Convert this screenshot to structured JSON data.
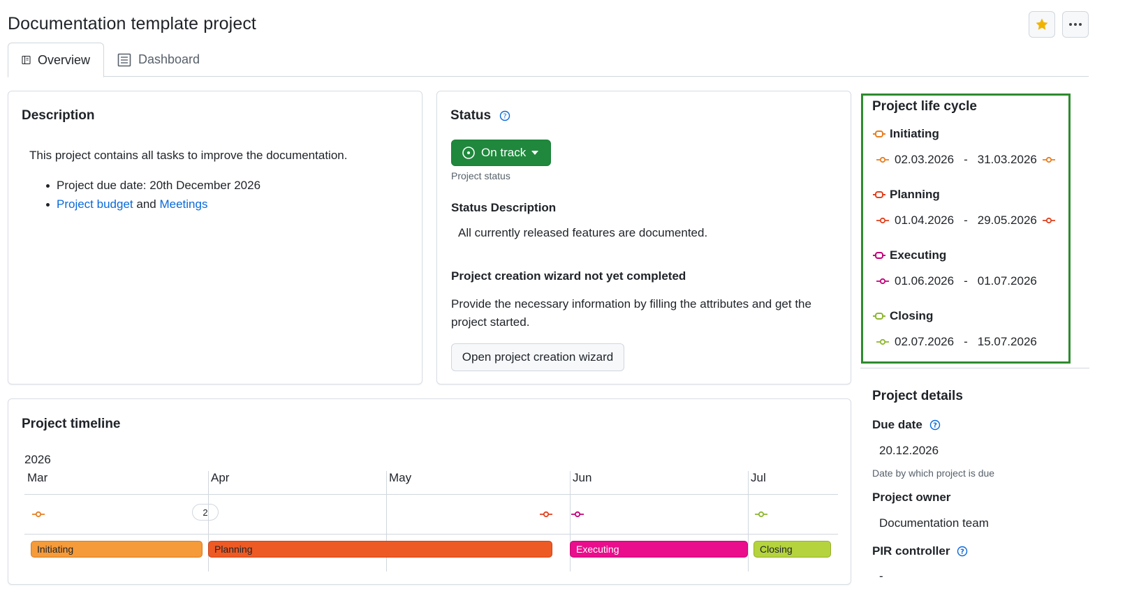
{
  "page": {
    "title": "Documentation template project"
  },
  "tabs": [
    {
      "label": "Overview",
      "icon": "book-icon",
      "active": true
    },
    {
      "label": "Dashboard",
      "icon": "list-icon",
      "active": false
    }
  ],
  "description": {
    "title": "Description",
    "intro": "This project contains all tasks to improve the documentation.",
    "bullet1": "Project due date: 20th December 2026",
    "budget_link": "Project budget",
    "and": "and",
    "meetings_link": "Meetings"
  },
  "status": {
    "title": "Status",
    "value": "On track",
    "value_hint": "Project status",
    "desc_head": "Status Description",
    "desc_text": "All currently released features are documented.",
    "wizard_head": "Project creation wizard not yet completed",
    "wizard_text_1": "Provide the necessary information by filling the attributes and get the",
    "wizard_text_2": "project started.",
    "wizard_button": "Open project creation wizard",
    "color": "#1f883d"
  },
  "lifecycle": {
    "title": "Project life cycle",
    "phases": [
      {
        "name": "Initiating",
        "start": "02.03.2026",
        "end": "31.03.2026",
        "color": "#e67e22"
      },
      {
        "name": "Planning",
        "start": "01.04.2026",
        "end": "29.05.2026",
        "color": "#e0401d"
      },
      {
        "name": "Executing",
        "start": "01.06.2026",
        "end": "01.07.2026",
        "color": "#c2007a"
      },
      {
        "name": "Closing",
        "start": "02.07.2026",
        "end": "15.07.2026",
        "color": "#8db62f"
      }
    ],
    "separator": "-"
  },
  "details": {
    "title": "Project details",
    "due_label": "Due date",
    "due_value": "20.12.2026",
    "due_hint": "Date by which project is due",
    "owner_label": "Project owner",
    "owner_value": "Documentation team",
    "pir_label": "PIR controller",
    "pir_value": "-"
  },
  "timeline": {
    "title": "Project timeline",
    "year": "2026",
    "months": [
      "Mar",
      "Apr",
      "May",
      "Jun",
      "Jul"
    ],
    "cluster_count": "2",
    "bars": [
      {
        "label": "Initiating",
        "color": "#f59b3a",
        "border": "#d97a1e",
        "text": "#1f2328"
      },
      {
        "label": "Planning",
        "color": "#ee5a24",
        "border": "#c9431a",
        "text": "#1f2328"
      },
      {
        "label": "Executing",
        "color": "#ea0d8c",
        "border": "#c10a74",
        "text": "#ffffff"
      },
      {
        "label": "Closing",
        "color": "#b5d33d",
        "border": "#94ae2d",
        "text": "#1f2328"
      }
    ]
  }
}
